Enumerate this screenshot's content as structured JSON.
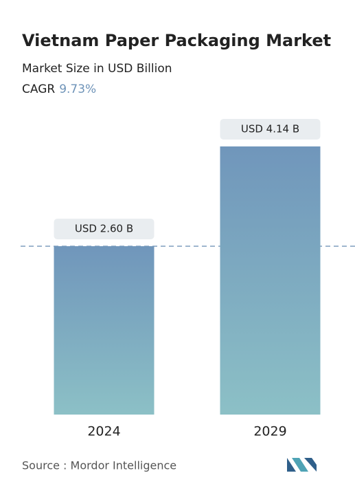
{
  "chart_data": {
    "type": "bar",
    "title": "Vietnam Paper Packaging Market",
    "subtitle": "Market Size in USD Billion",
    "cagr": {
      "label": "CAGR",
      "value": "9.73%"
    },
    "categories": [
      "2024",
      "2029"
    ],
    "values": [
      2.6,
      4.14
    ],
    "value_labels": [
      "USD 2.60 B",
      "USD 4.14 B"
    ],
    "color": "#7096bb",
    "source": "Source :  Mordor Intelligence"
  }
}
